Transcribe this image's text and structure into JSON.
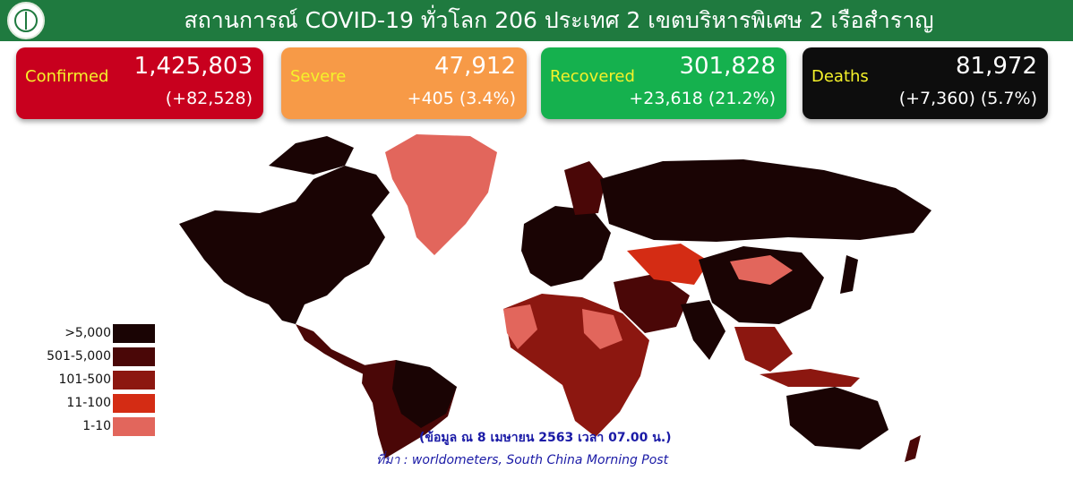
{
  "header": {
    "title": "สถานการณ์ COVID-19 ทั่วโลก 206 ประเทศ 2 เขตบริหารพิเศษ 2 เรือสำราญ",
    "logo_icon": "ministry-of-public-health-logo",
    "background": "#1f7a3f"
  },
  "cards": {
    "confirmed": {
      "label": "Confirmed",
      "value": "1,425,803",
      "delta": "(+82,528)",
      "color": "#c8001e"
    },
    "severe": {
      "label": "Severe",
      "value": "47,912",
      "delta": "+405 (3.4%)",
      "color": "#f79a47"
    },
    "recovered": {
      "label": "Recovered",
      "value": "301,828",
      "delta": "+23,618 (21.2%)",
      "color": "#15b14e"
    },
    "deaths": {
      "label": "Deaths",
      "value": "81,972",
      "delta": "(+7,360) (5.7%)",
      "color": "#0d0d0d"
    }
  },
  "legend": [
    {
      "label": ">5,000",
      "color": "#1a0404"
    },
    {
      "label": "501-5,000",
      "color": "#4a0707"
    },
    {
      "label": "101-500",
      "color": "#8c1710"
    },
    {
      "label": "11-100",
      "color": "#d42c14"
    },
    {
      "label": "1-10",
      "color": "#e2665c"
    }
  ],
  "footer": {
    "note": "(ข้อมูล ณ 8 เมษายน 2563 เวลา 07.00 น.)",
    "source": "ที่มา : worldometers, South China Morning Post"
  }
}
